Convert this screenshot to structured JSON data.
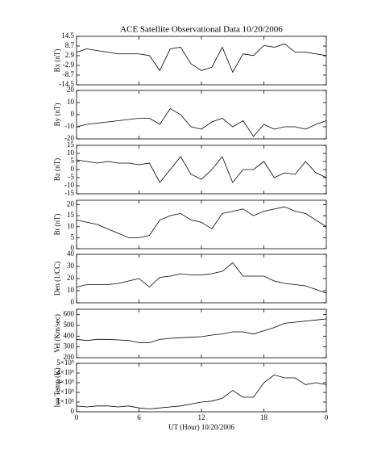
{
  "chart_data": [
    {
      "type": "line",
      "title": "ACE Satellite Observational Data  10/20/2006",
      "ylabel": "Bx (nT)",
      "color": "#000000",
      "x": [
        0,
        1,
        2,
        3,
        4,
        5,
        6,
        7,
        8,
        9,
        10,
        11,
        12,
        13,
        14,
        15,
        16,
        17,
        18,
        19,
        20,
        21,
        22,
        23,
        24
      ],
      "values": [
        5,
        7,
        6,
        5,
        4,
        4,
        4,
        3,
        -6,
        7,
        8,
        -2,
        -6,
        -4,
        8,
        -7,
        4,
        3,
        9,
        8,
        10,
        5,
        5,
        4,
        3
      ],
      "xlim": [
        0,
        24
      ],
      "ylim": [
        -14.5,
        14.5
      ],
      "yticks": [
        -14.5,
        -8.7,
        -2.9,
        2.9,
        8.7,
        14.5
      ]
    },
    {
      "type": "line",
      "ylabel": "By (nT)",
      "color": "#000000",
      "x": [
        0,
        1,
        2,
        3,
        4,
        5,
        6,
        7,
        8,
        9,
        10,
        11,
        12,
        13,
        14,
        15,
        16,
        17,
        18,
        19,
        20,
        21,
        22,
        23,
        24
      ],
      "values": [
        -10,
        -8,
        -7,
        -6,
        -5,
        -4,
        -3,
        -3,
        -8,
        5,
        0,
        -10,
        -12,
        -6,
        -3,
        -10,
        -5,
        -18,
        -8,
        -12,
        -10,
        -10,
        -12,
        -8,
        -5
      ],
      "xlim": [
        0,
        24
      ],
      "ylim": [
        -20,
        20
      ],
      "yticks": [
        -20,
        -10,
        0,
        10,
        20
      ]
    },
    {
      "type": "line",
      "ylabel": "Bz (nT)",
      "color": "#000000",
      "x": [
        0,
        1,
        2,
        3,
        4,
        5,
        6,
        7,
        8,
        9,
        10,
        11,
        12,
        13,
        14,
        15,
        16,
        17,
        18,
        19,
        20,
        21,
        22,
        23,
        24
      ],
      "values": [
        6,
        5,
        4,
        5,
        4,
        4,
        3,
        4,
        -8,
        0,
        8,
        -3,
        -6,
        0,
        8,
        -8,
        0,
        0,
        5,
        -5,
        -2,
        -3,
        5,
        -2,
        -5
      ],
      "xlim": [
        0,
        24
      ],
      "ylim": [
        -15,
        15
      ],
      "yticks": [
        -15,
        -10,
        -5,
        0,
        5,
        10,
        15
      ]
    },
    {
      "type": "line",
      "ylabel": "Bt (nT)",
      "color": "#000000",
      "x": [
        0,
        1,
        2,
        3,
        4,
        5,
        6,
        7,
        8,
        9,
        10,
        11,
        12,
        13,
        14,
        15,
        16,
        17,
        18,
        19,
        20,
        21,
        22,
        23,
        24
      ],
      "values": [
        13,
        12,
        11,
        9,
        7,
        5,
        5,
        6,
        13,
        15,
        16,
        13,
        12,
        9,
        16,
        17,
        18,
        15,
        17,
        18,
        19,
        17,
        16,
        13,
        10
      ],
      "xlim": [
        0,
        24
      ],
      "ylim": [
        0,
        22
      ],
      "yticks": [
        0,
        5,
        10,
        15,
        20
      ]
    },
    {
      "type": "line",
      "ylabel": "Den (1/CC)",
      "color": "#000000",
      "x": [
        0,
        1,
        2,
        3,
        4,
        5,
        6,
        7,
        8,
        9,
        10,
        11,
        12,
        13,
        14,
        15,
        16,
        17,
        18,
        19,
        20,
        21,
        22,
        23,
        24
      ],
      "values": [
        13,
        15,
        15,
        15,
        16,
        18,
        20,
        13,
        21,
        22,
        24,
        23,
        23,
        24,
        26,
        33,
        22,
        22,
        22,
        18,
        16,
        15,
        14,
        11,
        8
      ],
      "xlim": [
        0,
        24
      ],
      "ylim": [
        0,
        40
      ],
      "yticks": [
        0,
        10,
        20,
        30,
        40
      ]
    },
    {
      "type": "line",
      "ylabel": "Vel (Km/sec)",
      "color": "#000000",
      "x": [
        0,
        1,
        2,
        3,
        4,
        5,
        6,
        7,
        8,
        9,
        10,
        11,
        12,
        13,
        14,
        15,
        16,
        17,
        18,
        19,
        20,
        21,
        22,
        23,
        24
      ],
      "values": [
        370,
        360,
        370,
        370,
        365,
        360,
        340,
        340,
        370,
        380,
        385,
        390,
        395,
        410,
        420,
        440,
        440,
        420,
        450,
        480,
        520,
        530,
        540,
        550,
        560
      ],
      "xlim": [
        0,
        24
      ],
      "ylim": [
        200,
        650
      ],
      "yticks": [
        200,
        300,
        400,
        500,
        600
      ]
    },
    {
      "type": "line",
      "ylabel": "Ion Temp (K)",
      "xlabel": "UT (Hour)  10/20/2006",
      "color": "#000000",
      "x": [
        0,
        1,
        2,
        3,
        4,
        5,
        6,
        7,
        8,
        9,
        10,
        11,
        12,
        13,
        14,
        15,
        16,
        17,
        18,
        19,
        20,
        21,
        22,
        23,
        24
      ],
      "values": [
        60000,
        50000,
        60000,
        60000,
        50000,
        60000,
        40000,
        30000,
        40000,
        50000,
        60000,
        80000,
        100000,
        110000,
        140000,
        220000,
        150000,
        150000,
        300000,
        380000,
        350000,
        350000,
        280000,
        300000,
        280000
      ],
      "xlim": [
        0,
        24
      ],
      "ylim": [
        0,
        500000
      ],
      "yticks": [
        0,
        {
          "value": 100000,
          "label": "1×10⁵"
        },
        {
          "value": 200000,
          "label": "2×10⁵"
        },
        {
          "value": 300000,
          "label": "3×10⁵"
        },
        {
          "value": 400000,
          "label": "4×10⁵"
        },
        {
          "value": 500000,
          "label": "5×10⁵"
        }
      ],
      "xticks": [
        0,
        6,
        12,
        18,
        {
          "value": 24,
          "label": "0"
        }
      ]
    }
  ]
}
